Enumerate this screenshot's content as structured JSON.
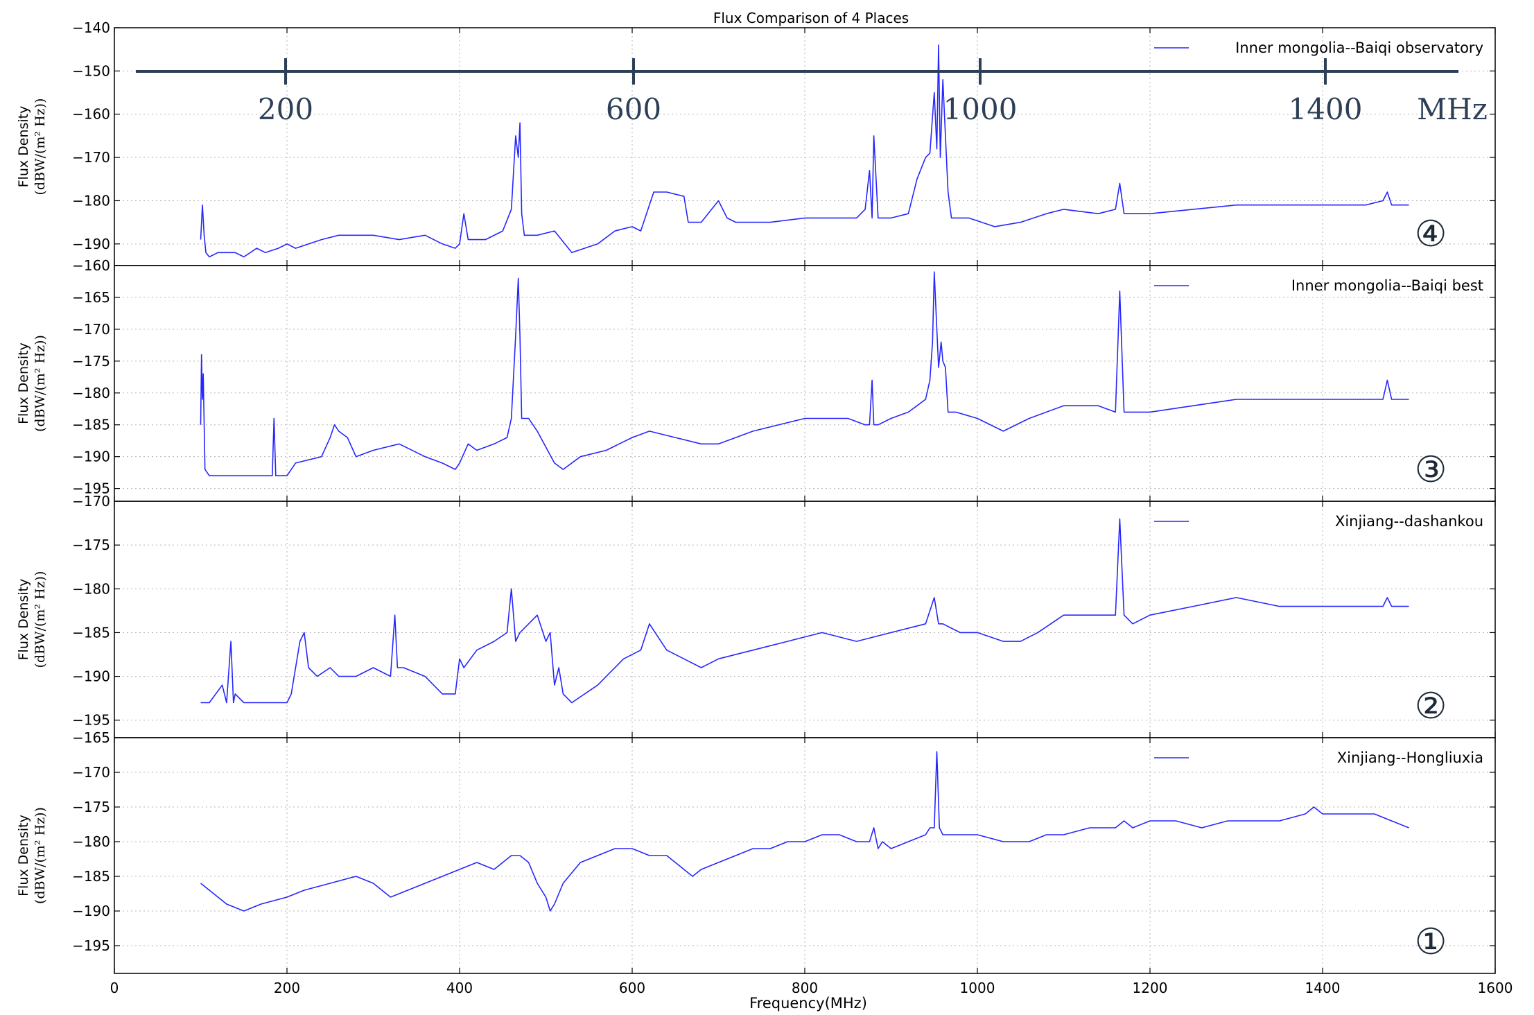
{
  "figure": {
    "title": "Flux Comparison of 4 Places",
    "xlabel": "Frequency(MHz)",
    "line_color": "#2626ff"
  },
  "overlay_scale": {
    "ticks": [
      "200",
      "600",
      "1000",
      "1400"
    ],
    "unit": "MHz",
    "color": "#2d3f57"
  },
  "chart_data": [
    {
      "type": "line",
      "panel_number": "④",
      "xlim": [
        0,
        1600
      ],
      "ylim": [
        -195,
        -140
      ],
      "xticks": [
        0,
        200,
        400,
        600,
        800,
        1000,
        1200,
        1400,
        1600
      ],
      "yticks": [
        -190,
        -180,
        -170,
        -160,
        -150,
        -140
      ],
      "ylabel": "Flux Density",
      "ylabel_units": "(dBW/(m² Hz))",
      "grid": true,
      "legend_position": "top-right",
      "series": [
        {
          "name": "Inner mongolia--Baiqi observatory",
          "x": [
            100,
            102,
            104,
            106,
            110,
            120,
            140,
            150,
            165,
            175,
            190,
            200,
            210,
            240,
            260,
            280,
            300,
            330,
            360,
            380,
            395,
            400,
            405,
            410,
            430,
            450,
            460,
            465,
            468,
            470,
            472,
            475,
            490,
            510,
            530,
            560,
            580,
            600,
            610,
            625,
            640,
            660,
            665,
            680,
            700,
            710,
            720,
            760,
            800,
            840,
            860,
            870,
            875,
            878,
            880,
            885,
            900,
            920,
            930,
            940,
            945,
            950,
            953,
            955,
            957,
            960,
            963,
            966,
            970,
            990,
            1020,
            1050,
            1080,
            1100,
            1140,
            1160,
            1165,
            1170,
            1200,
            1250,
            1300,
            1350,
            1400,
            1450,
            1470,
            1475,
            1480,
            1500
          ],
          "y": [
            -189,
            -181,
            -188,
            -192,
            -193,
            -192,
            -192,
            -193,
            -191,
            -192,
            -191,
            -190,
            -191,
            -189,
            -188,
            -188,
            -188,
            -189,
            -188,
            -190,
            -191,
            -190,
            -183,
            -189,
            -189,
            -187,
            -182,
            -165,
            -170,
            -162,
            -183,
            -188,
            -188,
            -187,
            -192,
            -190,
            -187,
            -186,
            -187,
            -178,
            -178,
            -179,
            -185,
            -185,
            -180,
            -184,
            -185,
            -185,
            -184,
            -184,
            -184,
            -182,
            -173,
            -184,
            -165,
            -184,
            -184,
            -183,
            -175,
            -170,
            -169,
            -155,
            -168,
            -144,
            -170,
            -152,
            -165,
            -178,
            -184,
            -184,
            -186,
            -185,
            -183,
            -182,
            -183,
            -182,
            -176,
            -183,
            -183,
            -182,
            -181,
            -181,
            -181,
            -181,
            -180,
            -178,
            -181,
            -181
          ]
        }
      ]
    },
    {
      "type": "line",
      "panel_number": "③",
      "xlim": [
        0,
        1600
      ],
      "ylim": [
        -197,
        -160
      ],
      "xticks": [
        0,
        200,
        400,
        600,
        800,
        1000,
        1200,
        1400,
        1600
      ],
      "yticks": [
        -195,
        -190,
        -185,
        -180,
        -175,
        -170,
        -165,
        -160
      ],
      "ylabel": "Flux Density",
      "ylabel_units": "(dBW/(m² Hz))",
      "grid": true,
      "legend_position": "top-right",
      "series": [
        {
          "name": "Inner mongolia--Baiqi best",
          "x": [
            100,
            101,
            102,
            103,
            105,
            110,
            130,
            150,
            170,
            183,
            185,
            187,
            200,
            210,
            240,
            250,
            255,
            260,
            270,
            280,
            300,
            330,
            360,
            380,
            395,
            400,
            410,
            420,
            440,
            455,
            460,
            465,
            468,
            470,
            472,
            480,
            490,
            510,
            520,
            540,
            570,
            600,
            620,
            650,
            680,
            700,
            740,
            800,
            850,
            870,
            875,
            878,
            880,
            885,
            900,
            920,
            930,
            940,
            945,
            948,
            950,
            953,
            955,
            958,
            960,
            963,
            966,
            975,
            1000,
            1030,
            1060,
            1100,
            1140,
            1160,
            1165,
            1170,
            1200,
            1250,
            1300,
            1350,
            1400,
            1450,
            1470,
            1475,
            1480,
            1500
          ],
          "y": [
            -185,
            -174,
            -181,
            -177,
            -192,
            -193,
            -193,
            -193,
            -193,
            -193,
            -184,
            -193,
            -193,
            -191,
            -190,
            -187,
            -185,
            -186,
            -187,
            -190,
            -189,
            -188,
            -190,
            -191,
            -192,
            -191,
            -188,
            -189,
            -188,
            -187,
            -184,
            -171,
            -162,
            -171,
            -184,
            -184,
            -186,
            -191,
            -192,
            -190,
            -189,
            -187,
            -186,
            -187,
            -188,
            -188,
            -186,
            -184,
            -184,
            -185,
            -185,
            -178,
            -185,
            -185,
            -184,
            -183,
            -182,
            -181,
            -178,
            -172,
            -161,
            -170,
            -176,
            -172,
            -175,
            -176,
            -183,
            -183,
            -184,
            -186,
            -184,
            -182,
            -182,
            -183,
            -164,
            -183,
            -183,
            -182,
            -181,
            -181,
            -181,
            -181,
            -181,
            -178,
            -181,
            -181
          ]
        }
      ]
    },
    {
      "type": "line",
      "panel_number": "②",
      "xlim": [
        0,
        1600
      ],
      "ylim": [
        -197,
        -170
      ],
      "xticks": [
        0,
        200,
        400,
        600,
        800,
        1000,
        1200,
        1400,
        1600
      ],
      "yticks": [
        -195,
        -190,
        -185,
        -180,
        -175,
        -170
      ],
      "ylabel": "Flux Density",
      "ylabel_units": "(dBW/(m² Hz))",
      "grid": true,
      "legend_position": "top-right",
      "series": [
        {
          "name": "Xinjiang--dashankou",
          "x": [
            100,
            110,
            125,
            130,
            135,
            138,
            140,
            150,
            170,
            200,
            205,
            215,
            220,
            225,
            235,
            250,
            260,
            280,
            300,
            320,
            325,
            328,
            335,
            360,
            380,
            395,
            400,
            405,
            420,
            440,
            455,
            460,
            465,
            470,
            480,
            490,
            500,
            505,
            510,
            515,
            520,
            530,
            560,
            590,
            610,
            620,
            640,
            660,
            680,
            700,
            740,
            780,
            820,
            860,
            900,
            940,
            950,
            955,
            960,
            980,
            1000,
            1030,
            1050,
            1070,
            1100,
            1140,
            1160,
            1165,
            1170,
            1180,
            1200,
            1250,
            1300,
            1350,
            1400,
            1450,
            1470,
            1475,
            1480,
            1500
          ],
          "y": [
            -193,
            -193,
            -191,
            -193,
            -186,
            -193,
            -192,
            -193,
            -193,
            -193,
            -192,
            -186,
            -185,
            -189,
            -190,
            -189,
            -190,
            -190,
            -189,
            -190,
            -183,
            -189,
            -189,
            -190,
            -192,
            -192,
            -188,
            -189,
            -187,
            -186,
            -185,
            -180,
            -186,
            -185,
            -184,
            -183,
            -186,
            -185,
            -191,
            -189,
            -192,
            -193,
            -191,
            -188,
            -187,
            -184,
            -187,
            -188,
            -189,
            -188,
            -187,
            -186,
            -185,
            -186,
            -185,
            -184,
            -181,
            -184,
            -184,
            -185,
            -185,
            -186,
            -186,
            -185,
            -183,
            -183,
            -183,
            -172,
            -183,
            -184,
            -183,
            -182,
            -181,
            -182,
            -182,
            -182,
            -182,
            -181,
            -182,
            -182
          ]
        }
      ]
    },
    {
      "type": "line",
      "panel_number": "①",
      "xlim": [
        0,
        1600
      ],
      "ylim": [
        -199,
        -165
      ],
      "xticks": [
        0,
        200,
        400,
        600,
        800,
        1000,
        1200,
        1400,
        1600
      ],
      "yticks": [
        -195,
        -190,
        -185,
        -180,
        -175,
        -170,
        -165
      ],
      "ylabel": "Flux Density",
      "ylabel_units": "(dBW/(m² Hz))",
      "grid": true,
      "legend_position": "top-right",
      "series": [
        {
          "name": "Xinjiang--Hongliuxia",
          "x": [
            100,
            110,
            130,
            150,
            170,
            200,
            220,
            250,
            280,
            300,
            320,
            340,
            360,
            380,
            400,
            420,
            440,
            460,
            470,
            480,
            490,
            500,
            505,
            510,
            520,
            540,
            560,
            580,
            600,
            620,
            640,
            660,
            670,
            680,
            700,
            720,
            740,
            760,
            780,
            800,
            820,
            840,
            860,
            875,
            880,
            885,
            890,
            900,
            920,
            940,
            945,
            950,
            953,
            956,
            960,
            980,
            1000,
            1030,
            1060,
            1080,
            1100,
            1130,
            1160,
            1170,
            1180,
            1200,
            1230,
            1260,
            1290,
            1320,
            1350,
            1380,
            1390,
            1400,
            1420,
            1440,
            1460,
            1480,
            1500
          ],
          "y": [
            -186,
            -187,
            -189,
            -190,
            -189,
            -188,
            -187,
            -186,
            -185,
            -186,
            -188,
            -187,
            -186,
            -185,
            -184,
            -183,
            -184,
            -182,
            -182,
            -183,
            -186,
            -188,
            -190,
            -189,
            -186,
            -183,
            -182,
            -181,
            -181,
            -182,
            -182,
            -184,
            -185,
            -184,
            -183,
            -182,
            -181,
            -181,
            -180,
            -180,
            -179,
            -179,
            -180,
            -180,
            -178,
            -181,
            -180,
            -181,
            -180,
            -179,
            -178,
            -178,
            -167,
            -178,
            -179,
            -179,
            -179,
            -180,
            -180,
            -179,
            -179,
            -178,
            -178,
            -177,
            -178,
            -177,
            -177,
            -178,
            -177,
            -177,
            -177,
            -176,
            -175,
            -176,
            -176,
            -176,
            -176,
            -177,
            -178
          ]
        }
      ]
    }
  ]
}
